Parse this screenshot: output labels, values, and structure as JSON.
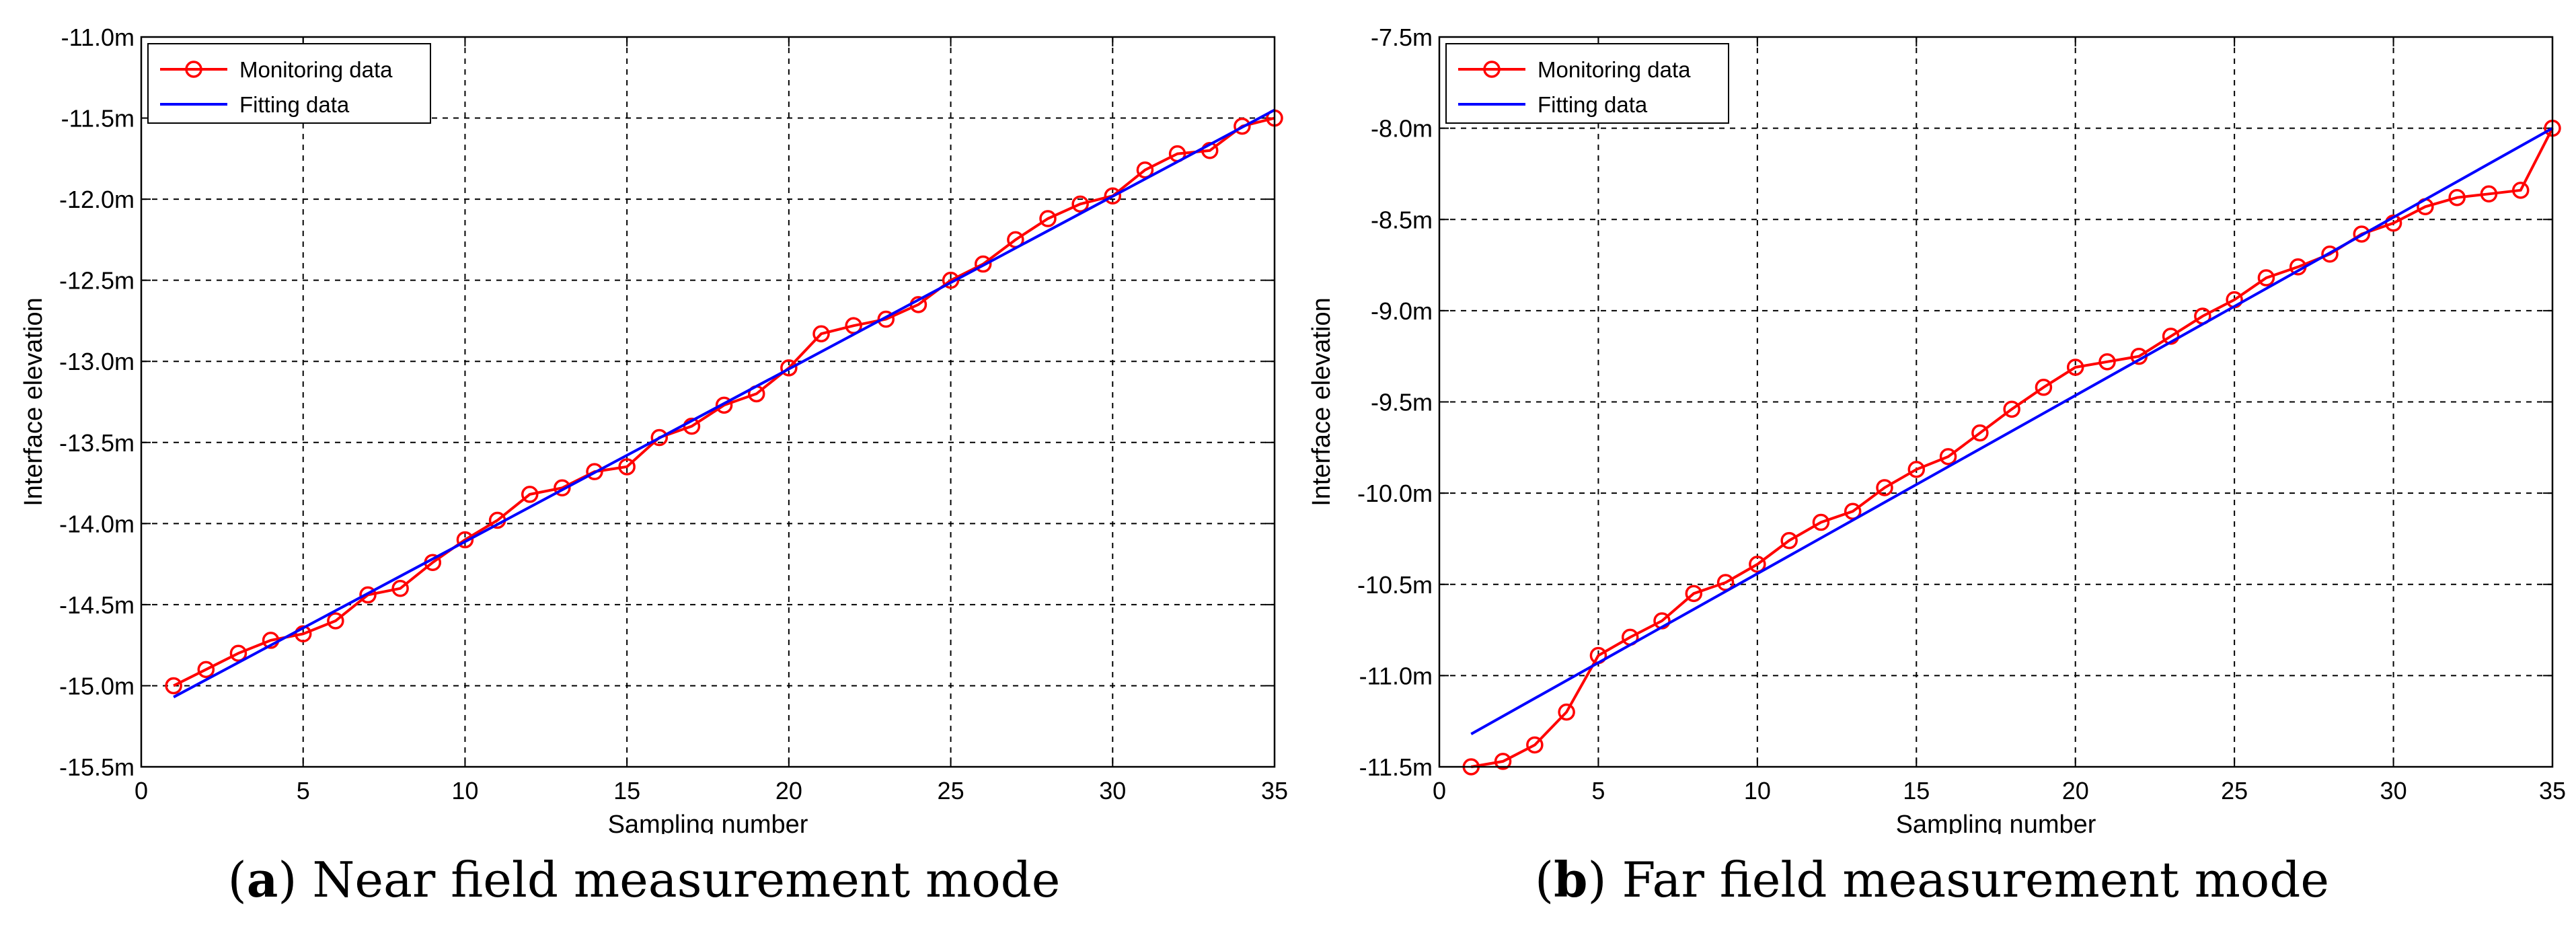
{
  "chart_data": [
    {
      "type": "line",
      "panel_letter": "a",
      "caption": "Near field measurement mode",
      "xlabel": "Sampling number",
      "ylabel": "Interface elevation",
      "xlim": [
        0,
        35
      ],
      "ylim": [
        -15.5,
        -11.0
      ],
      "xticks": [
        0,
        5,
        10,
        15,
        20,
        25,
        30,
        35
      ],
      "xtick_labels": [
        "0",
        "5",
        "10",
        "15",
        "20",
        "25",
        "30",
        "35"
      ],
      "yticks": [
        -11.0,
        -11.5,
        -12.0,
        -12.5,
        -13.0,
        -13.5,
        -14.0,
        -14.5,
        -15.0,
        -15.5
      ],
      "ytick_labels": [
        "-11.0m",
        "-11.5m",
        "-12.0m",
        "-12.5m",
        "-13.0m",
        "-13.5m",
        "-14.0m",
        "-14.5m",
        "-15.0m",
        "-15.5m"
      ],
      "grid": true,
      "legend_position": "top-left",
      "series": [
        {
          "name": "Monitoring data",
          "color": "#ff0000",
          "marker": "circle",
          "x": [
            1,
            2,
            3,
            4,
            5,
            6,
            7,
            8,
            9,
            10,
            11,
            12,
            13,
            14,
            15,
            16,
            17,
            18,
            19,
            20,
            21,
            22,
            23,
            24,
            25,
            26,
            27,
            28,
            29,
            30,
            31,
            32,
            33,
            34,
            35
          ],
          "y": [
            -15.0,
            -14.9,
            -14.8,
            -14.72,
            -14.68,
            -14.6,
            -14.44,
            -14.4,
            -14.24,
            -14.1,
            -13.98,
            -13.82,
            -13.78,
            -13.68,
            -13.65,
            -13.47,
            -13.4,
            -13.27,
            -13.2,
            -13.04,
            -12.83,
            -12.78,
            -12.74,
            -12.65,
            -12.5,
            -12.4,
            -12.25,
            -12.12,
            -12.03,
            -11.98,
            -11.82,
            -11.72,
            -11.7,
            -11.55,
            -11.5
          ]
        },
        {
          "name": "Fitting data",
          "color": "#0000ff",
          "marker": "none",
          "x": [
            1,
            35
          ],
          "y": [
            -15.07,
            -11.45
          ]
        }
      ]
    },
    {
      "type": "line",
      "panel_letter": "b",
      "caption": "Far field measurement mode",
      "xlabel": "Sampling number",
      "ylabel": "Interface elevation",
      "xlim": [
        0,
        35
      ],
      "ylim": [
        -11.5,
        -7.5
      ],
      "xticks": [
        0,
        5,
        10,
        15,
        20,
        25,
        30,
        35
      ],
      "xtick_labels": [
        "0",
        "5",
        "10",
        "15",
        "20",
        "25",
        "30",
        "35"
      ],
      "yticks": [
        -7.5,
        -8.0,
        -8.5,
        -9.0,
        -9.5,
        -10.0,
        -10.5,
        -11.0,
        -11.5
      ],
      "ytick_labels": [
        "-7.5m",
        "-8.0m",
        "-8.5m",
        "-9.0m",
        "-9.5m",
        "-10.0m",
        "-10.5m",
        "-11.0m",
        "-11.5m"
      ],
      "grid": true,
      "legend_position": "top-left",
      "series": [
        {
          "name": "Monitoring data",
          "color": "#ff0000",
          "marker": "circle",
          "x": [
            1,
            2,
            3,
            4,
            5,
            6,
            7,
            8,
            9,
            10,
            11,
            12,
            13,
            14,
            15,
            16,
            17,
            18,
            19,
            20,
            21,
            22,
            23,
            24,
            25,
            26,
            27,
            28,
            29,
            30,
            31,
            32,
            33,
            34,
            35
          ],
          "y": [
            -11.5,
            -11.47,
            -11.38,
            -11.2,
            -10.89,
            -10.79,
            -10.7,
            -10.55,
            -10.49,
            -10.39,
            -10.26,
            -10.16,
            -10.1,
            -9.97,
            -9.87,
            -9.8,
            -9.67,
            -9.54,
            -9.42,
            -9.31,
            -9.28,
            -9.25,
            -9.14,
            -9.03,
            -8.94,
            -8.82,
            -8.76,
            -8.69,
            -8.58,
            -8.52,
            -8.43,
            -8.38,
            -8.36,
            -8.34,
            -8.0
          ]
        },
        {
          "name": "Fitting data",
          "color": "#0000ff",
          "marker": "none",
          "x": [
            1,
            35
          ],
          "y": [
            -11.32,
            -8.0
          ]
        }
      ]
    }
  ]
}
